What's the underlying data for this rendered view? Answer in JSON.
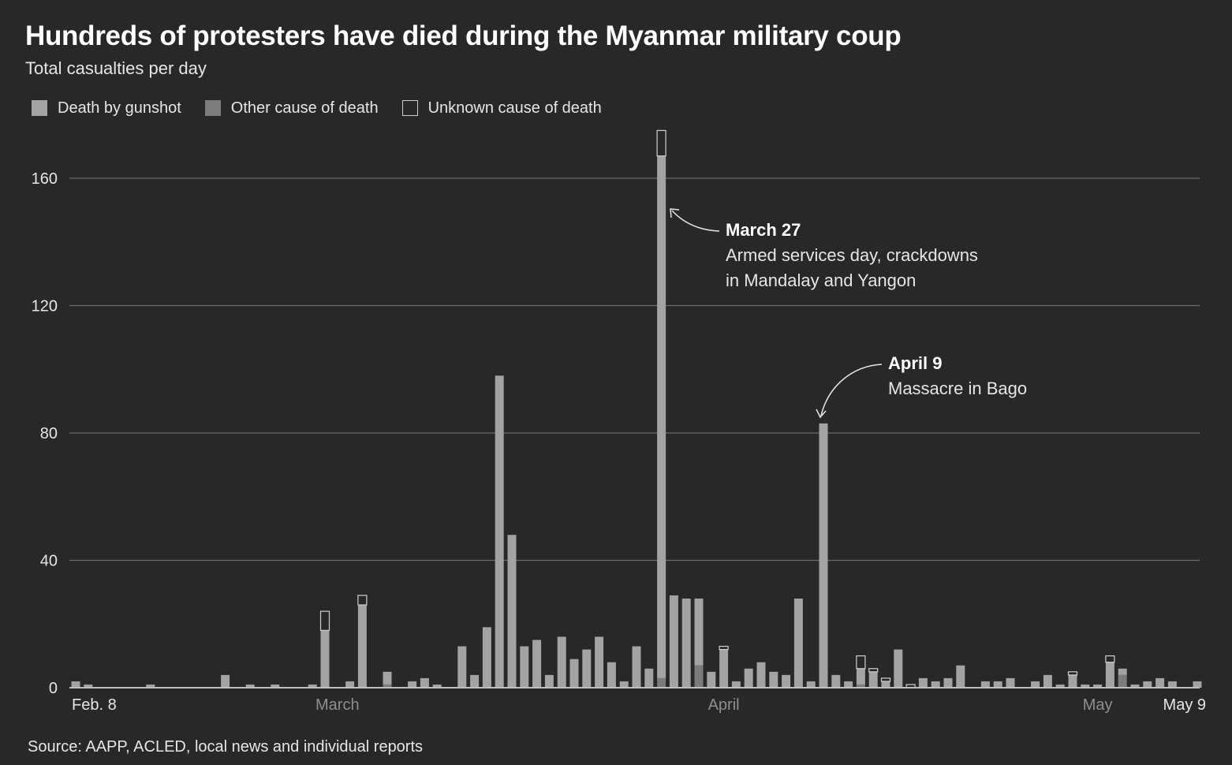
{
  "title": "Hundreds of protesters have died during the Myanmar military coup",
  "subtitle": "Total casualties per day",
  "source": "Source: AAPP, ACLED, local news and individual reports",
  "colors": {
    "background": "#282828",
    "gunshot": "#a3a3a3",
    "other": "#7c7c7c",
    "unknown_stroke": "#cfcfcf",
    "gridline": "#6a6a6a"
  },
  "legend": [
    {
      "label": "Death by gunshot",
      "key": "gunshot"
    },
    {
      "label": "Other cause of death",
      "key": "other"
    },
    {
      "label": "Unknown cause of death",
      "key": "unknown"
    }
  ],
  "annotations": [
    {
      "title": "March 27",
      "lines": [
        "Armed services day, crackdowns",
        "in Mandalay and Yangon"
      ]
    },
    {
      "title": "April 9",
      "lines": [
        "Massacre in Bago"
      ]
    }
  ],
  "chart_data": {
    "type": "bar",
    "stacked": true,
    "title": "Hundreds of protesters have died during the Myanmar military coup",
    "subtitle": "Total casualties per day",
    "xlabel": "",
    "ylabel": "",
    "ylim": [
      0,
      175
    ],
    "yticks": [
      0,
      40,
      80,
      120,
      160
    ],
    "grid": true,
    "legend_position": "top-left",
    "x_tick_labels": [
      {
        "date": "2021-02-08",
        "label": "Feb. 8",
        "bright": true
      },
      {
        "date": "2021-03-01",
        "label": "March",
        "bright": false
      },
      {
        "date": "2021-04-01",
        "label": "April",
        "bright": false
      },
      {
        "date": "2021-05-01",
        "label": "May",
        "bright": false
      },
      {
        "date": "2021-05-09",
        "label": "May 9",
        "bright": true
      }
    ],
    "categories": [
      "2021-02-08",
      "2021-02-09",
      "2021-02-14",
      "2021-02-20",
      "2021-02-22",
      "2021-02-24",
      "2021-02-27",
      "2021-02-28",
      "2021-03-02",
      "2021-03-03",
      "2021-03-05",
      "2021-03-07",
      "2021-03-08",
      "2021-03-09",
      "2021-03-11",
      "2021-03-12",
      "2021-03-13",
      "2021-03-14",
      "2021-03-15",
      "2021-03-16",
      "2021-03-17",
      "2021-03-18",
      "2021-03-19",
      "2021-03-20",
      "2021-03-21",
      "2021-03-22",
      "2021-03-23",
      "2021-03-24",
      "2021-03-25",
      "2021-03-26",
      "2021-03-27",
      "2021-03-28",
      "2021-03-29",
      "2021-03-30",
      "2021-03-31",
      "2021-04-01",
      "2021-04-02",
      "2021-04-03",
      "2021-04-04",
      "2021-04-05",
      "2021-04-06",
      "2021-04-07",
      "2021-04-08",
      "2021-04-09",
      "2021-04-10",
      "2021-04-11",
      "2021-04-12",
      "2021-04-13",
      "2021-04-14",
      "2021-04-15",
      "2021-04-16",
      "2021-04-17",
      "2021-04-18",
      "2021-04-19",
      "2021-04-20",
      "2021-04-22",
      "2021-04-23",
      "2021-04-24",
      "2021-04-26",
      "2021-04-27",
      "2021-04-28",
      "2021-04-29",
      "2021-04-30",
      "2021-05-01",
      "2021-05-02",
      "2021-05-03",
      "2021-05-04",
      "2021-05-05",
      "2021-05-06",
      "2021-05-07",
      "2021-05-09"
    ],
    "series": [
      {
        "name": "Death by gunshot",
        "values": [
          2,
          1,
          1,
          4,
          1,
          1,
          1,
          18,
          2,
          26,
          4,
          2,
          3,
          1,
          13,
          4,
          19,
          98,
          48,
          13,
          15,
          4,
          16,
          9,
          12,
          16,
          8,
          2,
          13,
          6,
          164,
          29,
          28,
          21,
          5,
          12,
          2,
          6,
          8,
          5,
          4,
          28,
          2,
          83,
          4,
          2,
          5,
          5,
          2,
          12,
          0,
          3,
          2,
          3,
          7,
          2,
          2,
          3,
          2,
          4,
          1,
          4,
          1,
          1,
          8,
          2,
          1,
          2,
          3,
          2,
          2
        ]
      },
      {
        "name": "Other cause of death",
        "values": [
          0,
          0,
          0,
          0,
          0,
          0,
          0,
          0,
          0,
          0,
          1,
          0,
          0,
          0,
          0,
          0,
          0,
          0,
          0,
          0,
          0,
          0,
          0,
          0,
          0,
          0,
          0,
          0,
          0,
          0,
          3,
          0,
          0,
          7,
          0,
          0,
          0,
          0,
          0,
          0,
          0,
          0,
          0,
          0,
          0,
          0,
          1,
          0,
          0,
          0,
          0,
          0,
          0,
          0,
          0,
          0,
          0,
          0,
          0,
          0,
          0,
          0,
          0,
          0,
          0,
          4,
          0,
          0,
          0,
          0,
          0
        ]
      },
      {
        "name": "Unknown cause of death",
        "values": [
          0,
          0,
          0,
          0,
          0,
          0,
          0,
          6,
          0,
          3,
          0,
          0,
          0,
          0,
          0,
          0,
          0,
          0,
          0,
          0,
          0,
          0,
          0,
          0,
          0,
          0,
          0,
          0,
          0,
          0,
          8,
          0,
          0,
          0,
          0,
          1,
          0,
          0,
          0,
          0,
          0,
          0,
          0,
          0,
          0,
          0,
          4,
          1,
          1,
          0,
          1,
          0,
          0,
          0,
          0,
          0,
          0,
          0,
          0,
          0,
          0,
          1,
          0,
          0,
          2,
          0,
          0,
          0,
          0,
          0,
          0
        ]
      }
    ]
  }
}
